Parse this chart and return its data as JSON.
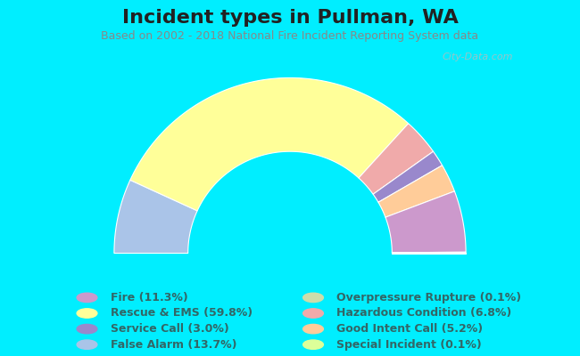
{
  "title": "Incident types in Pullman, WA",
  "subtitle": "Based on 2002 - 2018 National Fire Incident Reporting System data",
  "background_color": "#00eeff",
  "chart_bg_color": "#e0ede0",
  "categories": [
    "Fire",
    "Rescue & EMS",
    "Service Call",
    "False Alarm",
    "Overpressure Rupture",
    "Hazardous Condition",
    "Good Intent Call",
    "Special Incident"
  ],
  "values": [
    11.3,
    59.8,
    3.0,
    13.7,
    0.1,
    6.8,
    5.2,
    0.1
  ],
  "colors": [
    "#cc99cc",
    "#ffff99",
    "#9988cc",
    "#aac4e8",
    "#ccddaa",
    "#f0aaaa",
    "#ffcc99",
    "#ddff99"
  ],
  "legend_labels": [
    "Fire (11.3%)",
    "Rescue & EMS (59.8%)",
    "Service Call (3.0%)",
    "False Alarm (13.7%)",
    "Overpressure Rupture (0.1%)",
    "Hazardous Condition (6.8%)",
    "Good Intent Call (5.2%)",
    "Special Incident (0.1%)"
  ],
  "watermark": "City-Data.com",
  "title_fontsize": 16,
  "subtitle_fontsize": 9,
  "legend_fontsize": 9,
  "text_color": "#336666",
  "title_color": "#222222",
  "subtitle_color": "#888888",
  "arc_order_indices": [
    3,
    1,
    5,
    2,
    6,
    0,
    4,
    7
  ],
  "outer_r": 1.0,
  "inner_r": 0.58
}
